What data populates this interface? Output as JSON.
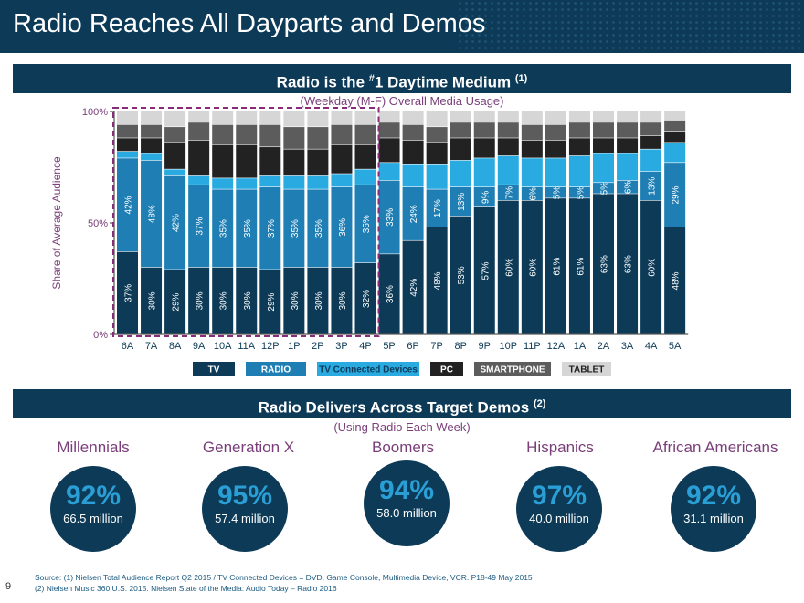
{
  "title": "Radio Reaches All Dayparts and Demos",
  "band1": {
    "text": "Radio is the ",
    "sup": "#",
    "text2": "1 Daytime Medium ",
    "note": "(1)"
  },
  "chart_subtitle": "(Weekday (M-F) Overall Media Usage)",
  "band2": {
    "text": "Radio Delivers Across Target Demos ",
    "note": "(2)"
  },
  "demos_subtitle": "(Using Radio Each Week)",
  "demos": [
    {
      "label": "Millennials",
      "pct": "92%",
      "millions": "66.5 million"
    },
    {
      "label": "Generation X",
      "pct": "95%",
      "millions": "57.4 million"
    },
    {
      "label": "Boomers",
      "pct": "94%",
      "millions": "58.0 million"
    },
    {
      "label": "Hispanics",
      "pct": "97%",
      "millions": "40.0 million"
    },
    {
      "label": "African Americans",
      "pct": "92%",
      "millions": "31.1 million"
    }
  ],
  "source_line1": "Source: (1) Nielsen Total Audience Report Q2 2015 / TV Connected Devices = DVD, Game Console, Multimedia Device, VCR. P18-49 May 2015",
  "source_line2": "(2) Nielsen Music 360 U.S. 2015. Nielsen State of the Media: Audio Today – Radio 2016",
  "page_number": "9",
  "colors": {
    "TV": "#0c3a57",
    "RADIO": "#1f7fb4",
    "TV Connected Devices": "#29abe2",
    "PC": "#222222",
    "SMARTPHONE": "#5c5c5c",
    "TABLET": "#d6d6d6",
    "accent": "#7a3f7a"
  },
  "chart_data": {
    "type": "bar",
    "stacked": true,
    "ylabel": "Share of Average Audience",
    "ylim": [
      0,
      100
    ],
    "yticks": [
      "0%",
      "50%",
      "100%"
    ],
    "categories": [
      "6A",
      "7A",
      "8A",
      "9A",
      "10A",
      "11A",
      "12P",
      "1P",
      "2P",
      "3P",
      "4P",
      "5P",
      "6P",
      "7P",
      "8P",
      "9P",
      "10P",
      "11P",
      "12A",
      "1A",
      "2A",
      "3A",
      "4A",
      "5A"
    ],
    "highlight_range": [
      "6A",
      "4P"
    ],
    "legend": [
      "TV",
      "RADIO",
      "TV Connected Devices",
      "PC",
      "SMARTPHONE",
      "TABLET"
    ],
    "series": [
      {
        "name": "TV",
        "values": [
          37,
          30,
          29,
          30,
          30,
          30,
          29,
          30,
          30,
          30,
          32,
          36,
          42,
          48,
          53,
          57,
          60,
          60,
          61,
          61,
          63,
          63,
          60,
          48
        ],
        "labels": [
          "37%",
          "30%",
          "29%",
          "30%",
          "30%",
          "30%",
          "29%",
          "30%",
          "30%",
          "30%",
          "32%",
          "36%",
          "42%",
          "48%",
          "53%",
          "57%",
          "60%",
          "60%",
          "61%",
          "61%",
          "63%",
          "63%",
          "60%",
          "48%"
        ]
      },
      {
        "name": "RADIO",
        "values": [
          42,
          48,
          42,
          37,
          35,
          35,
          37,
          35,
          35,
          36,
          35,
          33,
          24,
          17,
          13,
          9,
          7,
          6,
          5,
          5,
          5,
          6,
          13,
          29
        ],
        "labels": [
          "42%",
          "48%",
          "42%",
          "37%",
          "35%",
          "35%",
          "37%",
          "35%",
          "35%",
          "36%",
          "35%",
          "33%",
          "24%",
          "17%",
          "13%",
          "9%",
          "7%",
          "6%",
          "5%",
          "5%",
          "5%",
          "6%",
          "13%",
          "29%"
        ]
      },
      {
        "name": "TV Connected Devices",
        "values": [
          3,
          3,
          3,
          4,
          5,
          5,
          5,
          6,
          6,
          6,
          7,
          8,
          10,
          11,
          12,
          13,
          13,
          13,
          13,
          14,
          13,
          12,
          10,
          9
        ]
      },
      {
        "name": "PC",
        "values": [
          6,
          7,
          12,
          16,
          15,
          15,
          13,
          12,
          12,
          13,
          11,
          11,
          11,
          10,
          10,
          9,
          8,
          8,
          8,
          8,
          7,
          7,
          6,
          5
        ]
      },
      {
        "name": "SMARTPHONE",
        "values": [
          6,
          6,
          7,
          8,
          9,
          9,
          10,
          10,
          10,
          9,
          9,
          7,
          7,
          7,
          7,
          7,
          7,
          7,
          7,
          7,
          7,
          7,
          6,
          5
        ]
      },
      {
        "name": "TABLET",
        "values": [
          6,
          6,
          7,
          5,
          6,
          6,
          6,
          7,
          7,
          6,
          6,
          5,
          6,
          7,
          5,
          5,
          5,
          6,
          6,
          5,
          5,
          5,
          5,
          4
        ]
      }
    ]
  }
}
